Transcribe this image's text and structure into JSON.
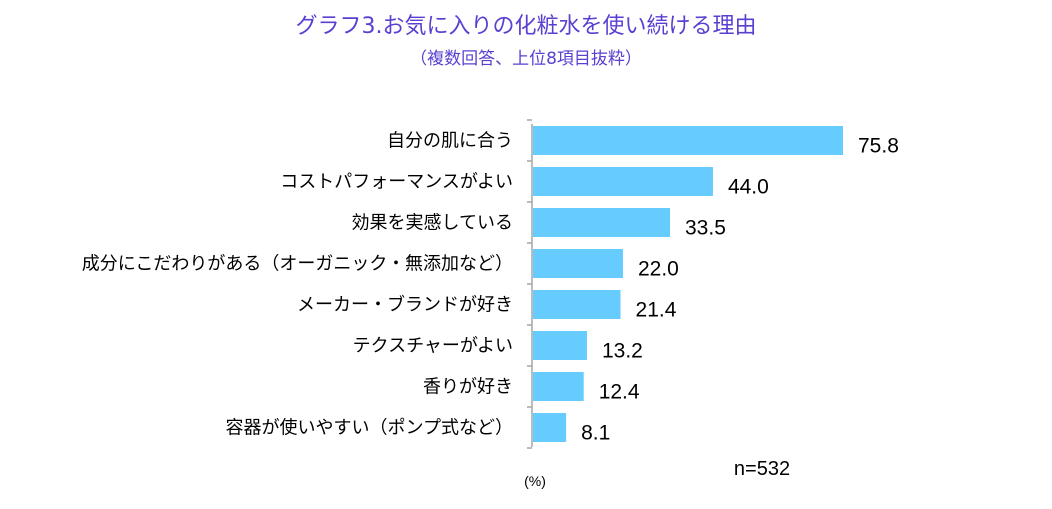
{
  "chart_data": {
    "type": "bar",
    "orientation": "horizontal",
    "title": "グラフ3.お気に入りの化粧水を使い続ける理由",
    "subtitle": "（複数回答、上位8項目抜粋）",
    "categories": [
      "自分の肌に合う",
      "コストパフォーマンスがよい",
      "効果を実感している",
      "成分にこだわりがある（オーガニック・無添加など）",
      "メーカー・ブランドが好き",
      "テクスチャーがよい",
      "香りが好き",
      "容器が使いやすい（ポンプ式など）"
    ],
    "values": [
      75.8,
      44.0,
      33.5,
      22.0,
      21.4,
      13.2,
      12.4,
      8.1
    ],
    "value_labels": [
      "75.8",
      "44.0",
      "33.5",
      "22.0",
      "21.4",
      "13.2",
      "12.4",
      "8.1"
    ],
    "unit_label": "(%)",
    "sample_note": "n=532",
    "bar_color": "#66ccff",
    "axis_color": "#a6a6a6",
    "title_color": "#5a3fd1",
    "xlim": [
      0,
      80
    ]
  }
}
